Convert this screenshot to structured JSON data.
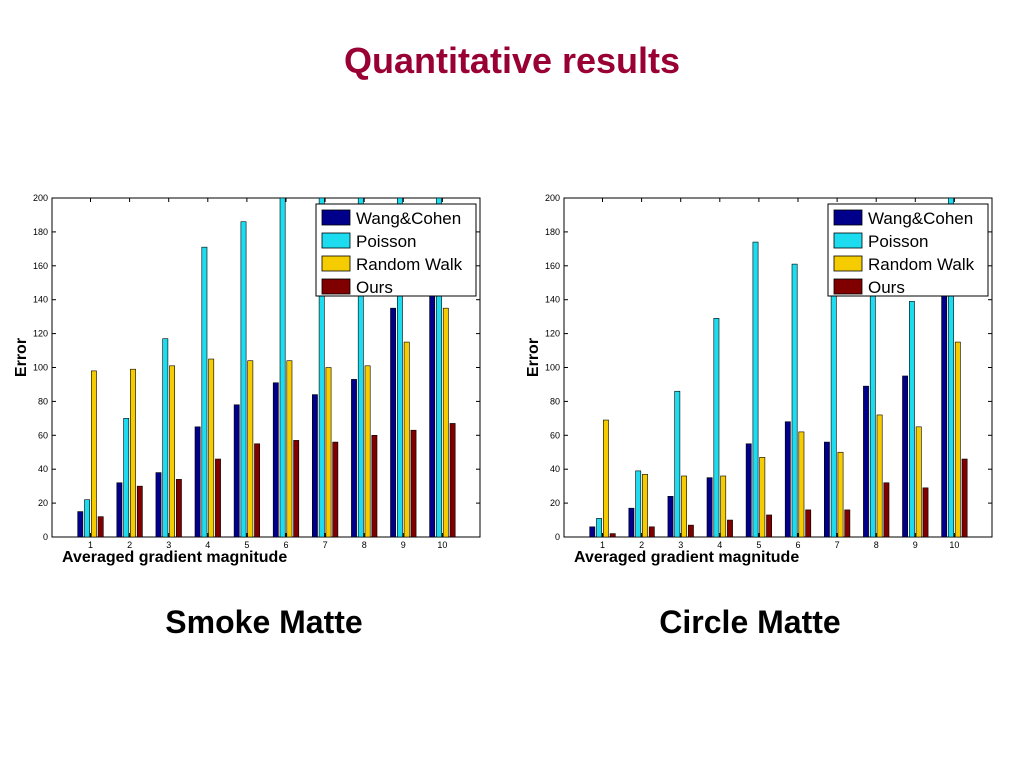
{
  "slide": {
    "title": "Quantitative results"
  },
  "colors": {
    "title": "#990033",
    "Wang&Cohen": "#00008B",
    "Poisson": "#1EDCF0",
    "Random Walk": "#F5CC00",
    "Ours": "#800000"
  },
  "chart_data": [
    {
      "type": "bar",
      "caption": "Smoke Matte",
      "xlabel": "Averaged gradient magnitude",
      "ylabel": "Error",
      "ylim": [
        0,
        200
      ],
      "yticks": [
        0,
        20,
        40,
        60,
        80,
        100,
        120,
        140,
        160,
        180,
        200
      ],
      "categories": [
        "1",
        "2",
        "3",
        "4",
        "5",
        "6",
        "7",
        "8",
        "9",
        "10"
      ],
      "legend_position": "top-right",
      "series": [
        {
          "name": "Wang&Cohen",
          "values": [
            15,
            32,
            38,
            65,
            78,
            91,
            84,
            93,
            135,
            145
          ]
        },
        {
          "name": "Poisson",
          "values": [
            22,
            70,
            117,
            171,
            186,
            200,
            200,
            200,
            200,
            200
          ]
        },
        {
          "name": "Random Walk",
          "values": [
            98,
            99,
            101,
            105,
            104,
            104,
            100,
            101,
            115,
            135
          ]
        },
        {
          "name": "Ours",
          "values": [
            12,
            30,
            34,
            46,
            55,
            57,
            56,
            60,
            63,
            67
          ]
        }
      ]
    },
    {
      "type": "bar",
      "caption": "Circle Matte",
      "xlabel": "Averaged gradient magnitude",
      "ylabel": "Error",
      "ylim": [
        0,
        200
      ],
      "yticks": [
        0,
        20,
        40,
        60,
        80,
        100,
        120,
        140,
        160,
        180,
        200
      ],
      "categories": [
        "1",
        "2",
        "3",
        "4",
        "5",
        "6",
        "7",
        "8",
        "9",
        "10"
      ],
      "legend_position": "top-right",
      "series": [
        {
          "name": "Wang&Cohen",
          "values": [
            6,
            17,
            24,
            35,
            55,
            68,
            56,
            89,
            95,
            145
          ]
        },
        {
          "name": "Poisson",
          "values": [
            11,
            39,
            86,
            129,
            174,
            161,
            145,
            145,
            139,
            200
          ]
        },
        {
          "name": "Random Walk",
          "values": [
            69,
            37,
            36,
            36,
            47,
            62,
            50,
            72,
            65,
            115
          ]
        },
        {
          "name": "Ours",
          "values": [
            2,
            6,
            7,
            10,
            13,
            16,
            16,
            32,
            29,
            46
          ]
        }
      ]
    }
  ]
}
